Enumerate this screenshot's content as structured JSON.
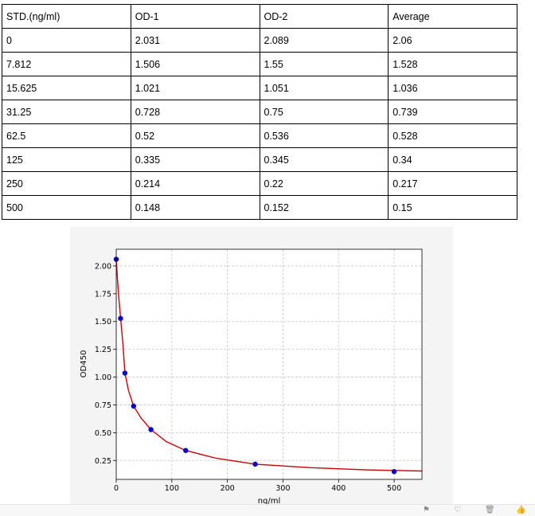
{
  "table": {
    "headers": [
      "STD.(ng/ml)",
      "OD-1",
      "OD-2",
      "Average"
    ],
    "rows": [
      [
        "0",
        "2.031",
        "2.089",
        "2.06"
      ],
      [
        "7.812",
        "1.506",
        "1.55",
        "1.528"
      ],
      [
        "15.625",
        "1.021",
        "1.051",
        "1.036"
      ],
      [
        "31.25",
        "0.728",
        "0.75",
        "0.739"
      ],
      [
        "62.5",
        "0.52",
        "0.536",
        "0.528"
      ],
      [
        "125",
        "0.335",
        "0.345",
        "0.34"
      ],
      [
        "250",
        "0.214",
        "0.22",
        "0.217"
      ],
      [
        "500",
        "0.148",
        "0.152",
        "0.15"
      ]
    ]
  },
  "chart_data": {
    "type": "scatter",
    "title": "",
    "xlabel": "ng/ml",
    "ylabel": "OD450",
    "xlim": [
      0,
      550
    ],
    "ylim": [
      0.08,
      2.15
    ],
    "xticks": [
      0,
      100,
      200,
      300,
      400,
      500
    ],
    "yticks": [
      0.25,
      0.5,
      0.75,
      1.0,
      1.25,
      1.5,
      1.75,
      2.0
    ],
    "xtick_labels": [
      "0",
      "100",
      "200",
      "300",
      "400",
      "500"
    ],
    "ytick_labels": [
      "0.25",
      "0.50",
      "0.75",
      "1.00",
      "1.25",
      "1.50",
      "1.75",
      "2.00"
    ],
    "grid": true,
    "points": {
      "x": [
        0,
        7.812,
        15.625,
        31.25,
        62.5,
        125,
        250,
        500
      ],
      "y": [
        2.06,
        1.528,
        1.036,
        0.739,
        0.528,
        0.34,
        0.217,
        0.15
      ],
      "color": "#0000cc"
    },
    "fit_curve": {
      "x": [
        0,
        2,
        4,
        7.812,
        12,
        15.625,
        22,
        31.25,
        45,
        62.5,
        90,
        125,
        180,
        250,
        350,
        450,
        550
      ],
      "y": [
        2.06,
        1.9,
        1.75,
        1.528,
        1.3,
        1.036,
        0.88,
        0.739,
        0.63,
        0.528,
        0.42,
        0.34,
        0.27,
        0.217,
        0.185,
        0.165,
        0.155
      ],
      "color": "#cc0000"
    }
  },
  "toolbar": {
    "icons": [
      "flag-icon",
      "heart-icon",
      "trash-icon",
      "thumb-icon"
    ]
  }
}
